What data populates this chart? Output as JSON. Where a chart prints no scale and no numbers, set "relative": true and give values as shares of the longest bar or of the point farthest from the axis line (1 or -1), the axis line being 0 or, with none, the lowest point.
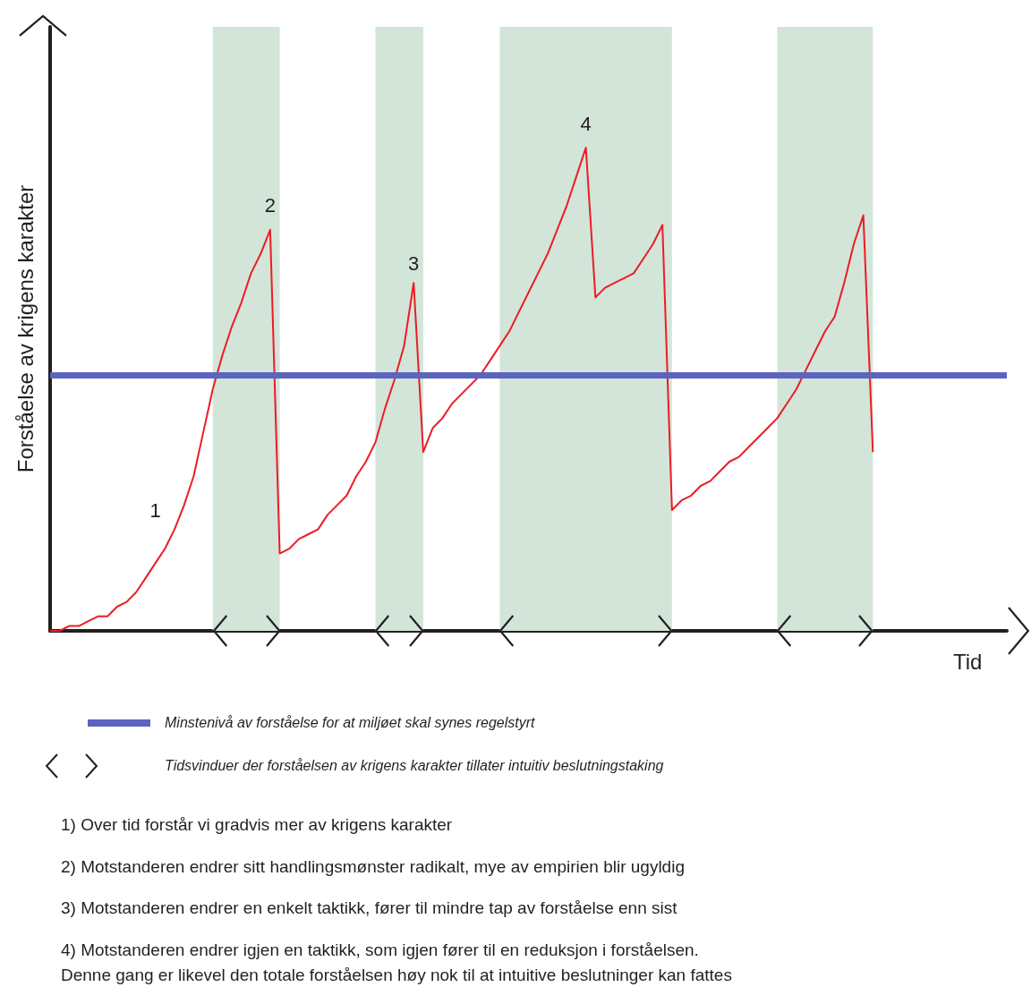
{
  "chart_data": {
    "type": "line",
    "relative": true,
    "xlabel": "Tid",
    "ylabel": "Forståelse av krigens karakter",
    "categories": [
      null,
      null,
      null,
      null,
      null,
      null,
      null,
      null,
      null,
      null,
      null,
      null,
      null,
      null,
      null,
      null,
      null,
      null,
      null,
      null,
      null,
      null,
      null,
      null,
      null,
      null,
      null,
      null,
      null,
      null,
      null,
      null,
      null,
      null,
      null,
      null,
      null,
      null,
      null,
      null,
      null,
      null,
      null,
      null,
      null,
      null,
      null,
      null,
      null,
      null,
      null,
      null,
      null,
      null,
      null,
      null,
      null,
      null,
      null,
      null,
      null,
      null,
      null,
      null,
      null,
      null,
      null,
      null,
      null,
      null,
      null,
      null,
      null,
      null,
      null,
      null,
      null,
      null,
      null,
      null,
      null,
      null,
      null,
      null,
      null,
      null,
      null,
      null,
      null,
      null,
      null,
      null,
      null,
      null,
      null,
      null,
      null,
      null,
      null,
      null,
      null
    ],
    "marker": "none",
    "line_style": "solid",
    "series": [
      {
        "color": "#ed1c24",
        "values": [
          0,
          0,
          0.01,
          0.01,
          0.02,
          0.03,
          0.03,
          0.05,
          0.06,
          0.08,
          0.11,
          0.14,
          0.17,
          0.21,
          0.26,
          0.32,
          0.41,
          0.5,
          0.57,
          0.63,
          0.68,
          0.74,
          0.78,
          0.83,
          0.16,
          0.17,
          0.19,
          0.2,
          0.21,
          0.24,
          0.26,
          0.28,
          0.32,
          0.35,
          0.39,
          0.46,
          0.52,
          0.59,
          0.72,
          0.37,
          0.42,
          0.44,
          0.47,
          0.49,
          0.51,
          0.53,
          0.56,
          0.59,
          0.62,
          0.66,
          0.7,
          0.74,
          0.78,
          0.83,
          0.88,
          0.94,
          1.0,
          0.69,
          0.71,
          0.72,
          0.73,
          0.74,
          0.77,
          0.8,
          0.84,
          0.25,
          0.27,
          0.28,
          0.3,
          0.31,
          0.33,
          0.35,
          0.36,
          0.38,
          0.4,
          0.42,
          0.44,
          0.47,
          0.5,
          0.54,
          0.58,
          0.62,
          0.65,
          0.72,
          0.8,
          0.86,
          0.37,
          null,
          null,
          null,
          null,
          null,
          null,
          null,
          null,
          null,
          null,
          null,
          null,
          null,
          null
        ]
      }
    ],
    "ref_lines": [
      {
        "axis": "y",
        "value": 0.53,
        "label": "Minstenivå av forståelse for at miljøet skal synes regelstyrt",
        "color": "#5b64bf"
      }
    ],
    "annotations": [
      "1",
      "2",
      "3",
      "4",
      "Tidsvinduer der forståelsen av krigens karakter tillater intuitiv beslutningstaking",
      "1) Over tid forstår vi gradvis mer av krigens karakter",
      "2) Motstanderen endrer sitt handlingsmønster radikalt, mye av empirien blir ugyldig",
      "3) Motstanderen endrer en enkelt taktikk, fører til mindre tap av forståelse enn sist",
      "4) Motstanderen endrer igjen en taktikk, som igjen fører til en reduksjon i forståelsen.\nDenne gang er likevel den totale forståelsen høy nok til at intuitive beslutninger kan fattes"
    ]
  }
}
